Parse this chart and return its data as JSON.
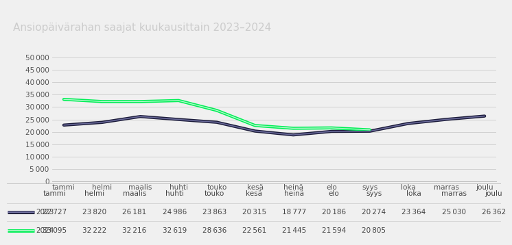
{
  "title": "Ansiopäivärahan saajat kuukausittain 2023–2024",
  "months": [
    "tammi",
    "helmi",
    "maalis",
    "huhti",
    "touko",
    "kesä",
    "heinä",
    "elo",
    "syys",
    "loka",
    "marras",
    "joulu"
  ],
  "data_2023": [
    22727,
    23820,
    26181,
    24986,
    23863,
    20315,
    18777,
    20186,
    20274,
    23364,
    25030,
    26362
  ],
  "data_2024": [
    33095,
    32222,
    32216,
    32619,
    28636,
    22561,
    21445,
    21594,
    20805,
    null,
    null,
    null
  ],
  "color_2023": "#1c1c3a",
  "color_2024": "#00ee55",
  "background_title": "#2a2a2a",
  "background_chart": "#f0f0f0",
  "ylim": [
    0,
    55000
  ],
  "yticks": [
    0,
    5000,
    10000,
    15000,
    20000,
    25000,
    30000,
    35000,
    40000,
    45000,
    50000
  ],
  "title_color": "#cccccc",
  "title_fontsize": 11,
  "table_labels_2023": [
    "22 727",
    "23 820",
    "26 181",
    "24 986",
    "23 863",
    "20 315",
    "18 777",
    "20 186",
    "20 274",
    "23 364",
    "25 030",
    "26 362"
  ],
  "table_labels_2024": [
    "33 095",
    "32 222",
    "32 216",
    "32 619",
    "28 636",
    "22 561",
    "21 445",
    "21 594",
    "20 805",
    "",
    "",
    ""
  ]
}
